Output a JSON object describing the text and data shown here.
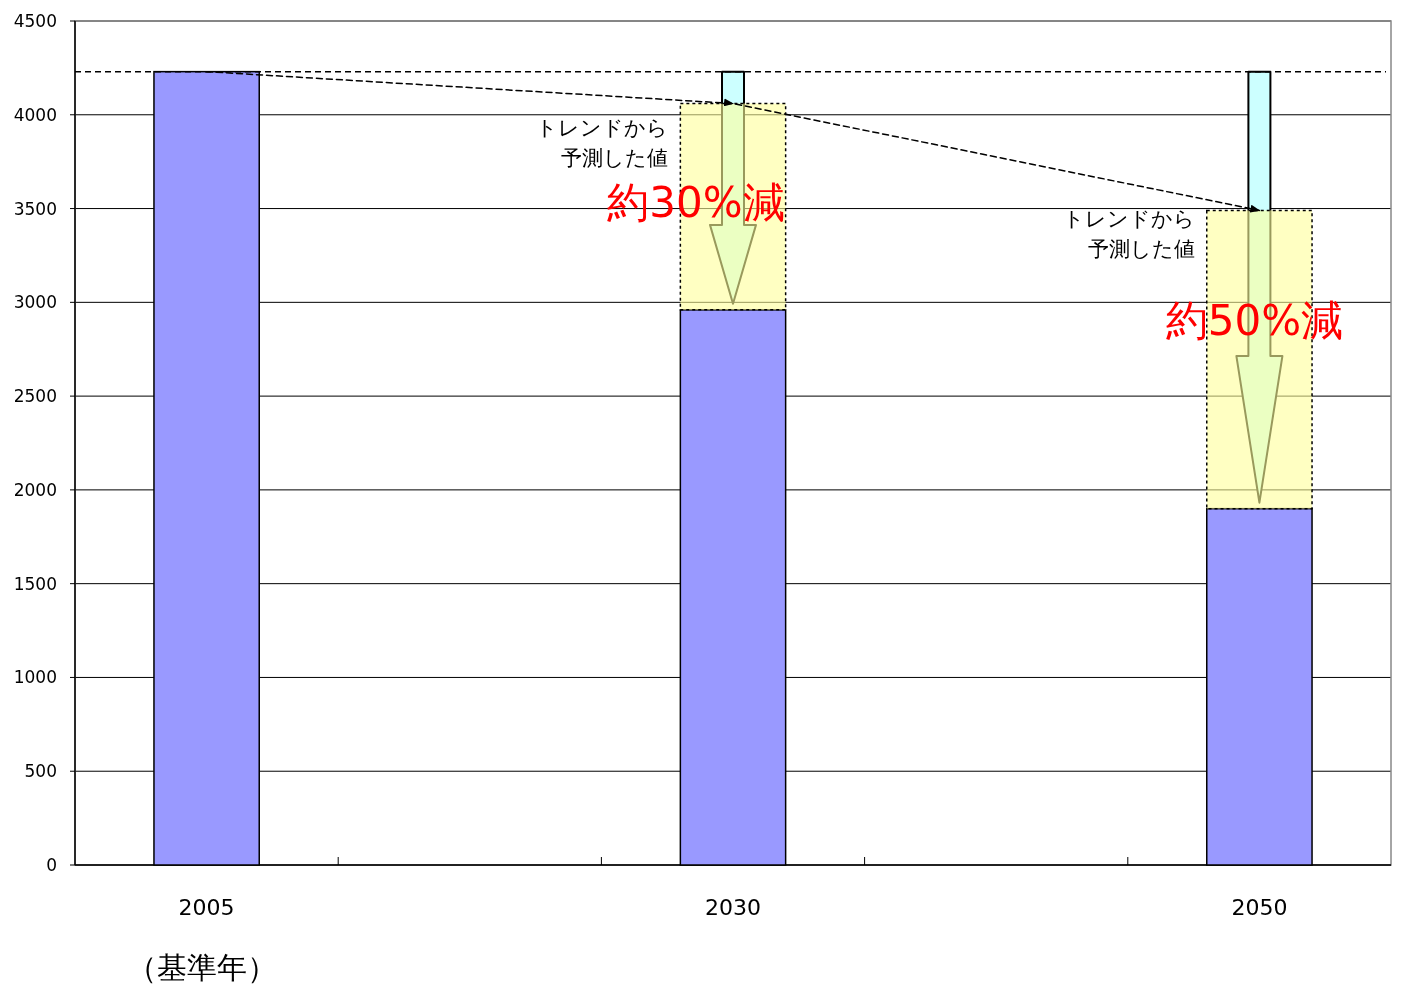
{
  "chart_data": {
    "type": "bar",
    "stacked": true,
    "categories": [
      "2005",
      null,
      "2030",
      null,
      "2050"
    ],
    "series": [
      {
        "color": "#9999ff",
        "values": [
          4230,
          null,
          2960,
          null,
          1900
        ]
      },
      {
        "color": "#ffff99",
        "line_style": "dashed",
        "values": [
          null,
          null,
          1100,
          null,
          1590
        ]
      },
      {
        "type": "line",
        "color": "#000000",
        "line_style": "dashed",
        "values": [
          4230,
          null,
          4060,
          null,
          3490
        ]
      }
    ],
    "ylim": [
      0,
      4500
    ],
    "yticks": [
      0,
      500,
      1000,
      1500,
      2000,
      2500,
      3000,
      3500,
      4000,
      4500
    ],
    "grid": "y",
    "ref_lines": [
      {
        "axis": "y",
        "value": 4230,
        "color": "#000000",
        "line_style": "dashed"
      }
    ],
    "annotations": [
      "トレンドから予測した値",
      "トレンドから予測した値",
      "約30%減",
      "約50%減",
      "（基準年）"
    ]
  }
}
